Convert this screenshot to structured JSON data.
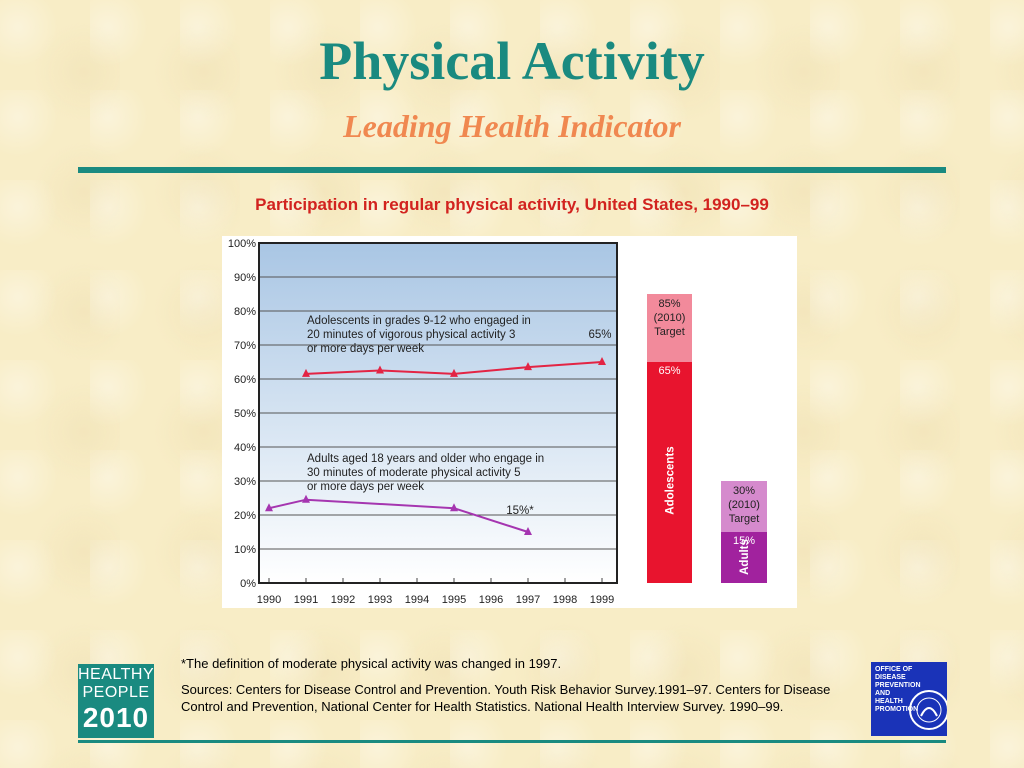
{
  "header": {
    "title": "Physical Activity",
    "subtitle": "Leading Health Indicator"
  },
  "colors": {
    "teal": "#1a8a80",
    "orange": "#f08850",
    "red": "#d2231f",
    "adolescent_line": "#e32444",
    "adult_line": "#a535b0",
    "adolescent_bar": "#e8142e",
    "adolescent_target": "#f28a9b",
    "adult_bar": "#a1229e",
    "adult_target": "#d58acd",
    "plot_top": "#a9c6e4",
    "plot_bottom": "#ffffff"
  },
  "chart_data": {
    "type": "line",
    "title": "Participation in regular physical activity, United States, 1990–99",
    "y_ticks": [
      "0%",
      "10%",
      "20%",
      "30%",
      "40%",
      "50%",
      "60%",
      "70%",
      "80%",
      "90%",
      "100%"
    ],
    "ylim": [
      0,
      100
    ],
    "x_ticks": [
      "1990",
      "1991",
      "1992",
      "1993",
      "1994",
      "1995",
      "1996",
      "1997",
      "1998",
      "1999"
    ],
    "grid": true,
    "series": [
      {
        "label_lines": [
          "Adolescents in grades 9-12 who engaged in",
          "20 minutes of vigorous physical activity 3",
          "or more days per week"
        ],
        "points": [
          {
            "x": 1991,
            "y": 61.5
          },
          {
            "x": 1993,
            "y": 62.5
          },
          {
            "x": 1995,
            "y": 61.5
          },
          {
            "x": 1997,
            "y": 63.5
          },
          {
            "x": 1999,
            "y": 65
          }
        ],
        "end_label": "65%"
      },
      {
        "label_lines": [
          "Adults aged 18 years and older who engage in",
          "30 minutes of moderate physical activity 5",
          "or more days per week"
        ],
        "points": [
          {
            "x": 1990,
            "y": 22
          },
          {
            "x": 1991,
            "y": 24.5
          },
          {
            "x": 1995,
            "y": 22
          },
          {
            "x": 1997,
            "y": 15
          }
        ],
        "end_label": "15%*"
      }
    ],
    "targets": [
      {
        "group": "Adolescents",
        "current": 65,
        "current_label": "65%",
        "target": 85,
        "target_lines": [
          "85%",
          "(2010)",
          "Target"
        ]
      },
      {
        "group": "Adults",
        "current": 15,
        "current_label": "15%",
        "target": 30,
        "target_lines": [
          "30%",
          "(2010)",
          "Target"
        ]
      }
    ]
  },
  "footer": {
    "footnote": "*The definition of moderate physical activity was changed in 1997.",
    "sources": "Sources: Centers for Disease Control and Prevention. Youth Risk Behavior Survey.1991–97. Centers for Disease Control and Prevention, National Center for Health Statistics. National Health Interview Survey. 1990–99."
  },
  "logos": {
    "healthy_people": [
      "HEALTHY",
      "PEOPLE",
      "2010"
    ],
    "odphp": [
      "Office of",
      "Disease",
      "Prevention and",
      "Health",
      "Promotion"
    ]
  }
}
